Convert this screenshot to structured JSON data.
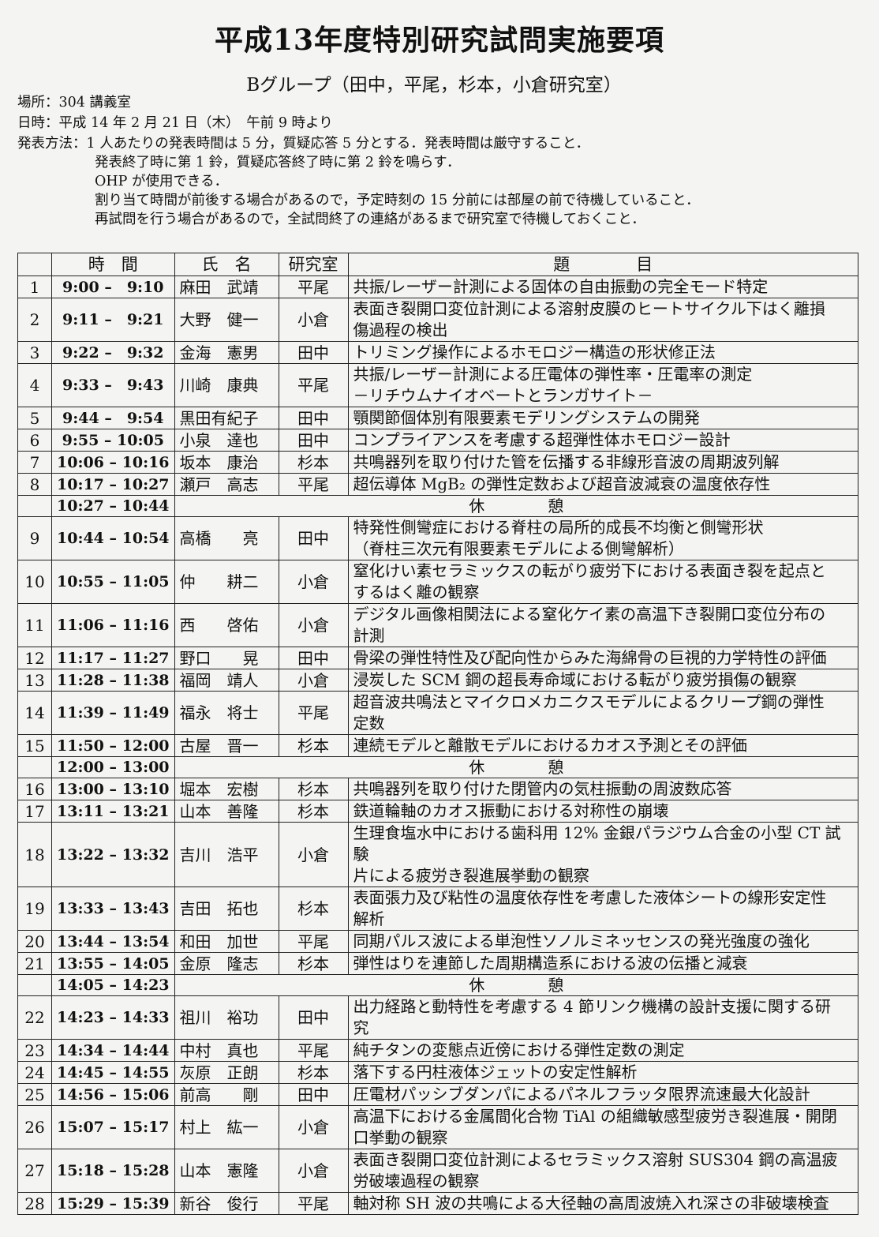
{
  "title": "平成13年度特別研究試問実施要項",
  "subtitle": "Bグループ（田中，平尾，杉本，小倉研究室）",
  "info": {
    "place": "場所：304 講義室",
    "datetime": "日時：平成 14 年 2 月 21 日（木）　午前 9 時より",
    "method_label": "発表方法：",
    "method_lines": [
      "1 人あたりの発表時間は 5 分，質疑応答 5 分とする．発表時間は厳守すること．",
      "発表終了時に第 1 鈴，質疑応答終了時に第 2 鈴を鳴らす．",
      "OHP が使用できる．",
      "割り当て時間が前後する場合があるので，予定時刻の 15 分前には部屋の前で待機していること．",
      "再試問を行う場合があるので，全試問終了の連絡があるまで研究室で待機しておくこと．"
    ]
  },
  "table": {
    "headers": [
      "",
      "時　間",
      "氏　名",
      "研究室",
      "題　　　　目"
    ],
    "break_label": "休　　　　憩",
    "rows": [
      {
        "no": "1",
        "time": "9:00 –　9:10",
        "name": "麻田　武靖",
        "lab": "平尾",
        "title": "共振/レーザー計測による固体の自由振動の完全モード特定"
      },
      {
        "no": "2",
        "time": "9:11 –　9:21",
        "name": "大野　健一",
        "lab": "小倉",
        "title": "表面き裂開口変位計測による溶射皮膜のヒートサイクル下はく離損\n傷過程の検出"
      },
      {
        "no": "3",
        "time": "9:22 –　9:32",
        "name": "金海　憲男",
        "lab": "田中",
        "title": "トリミング操作によるホモロジー構造の形状修正法"
      },
      {
        "no": "4",
        "time": "9:33 –　9:43",
        "name": "川崎　康典",
        "lab": "平尾",
        "title": "共振/レーザー計測による圧電体の弾性率・圧電率の測定\n－リチウムナイオベートとランガサイト－"
      },
      {
        "no": "5",
        "time": "9:44 –　9:54",
        "name": "黒田有紀子",
        "lab": "田中",
        "title": "顎関節個体別有限要素モデリングシステムの開発"
      },
      {
        "no": "6",
        "time": "9:55 – 10:05",
        "name": "小泉　達也",
        "lab": "田中",
        "title": "コンプライアンスを考慮する超弾性体ホモロジー設計"
      },
      {
        "no": "7",
        "time": "10:06 – 10:16",
        "name": "坂本　康治",
        "lab": "杉本",
        "title": "共鳴器列を取り付けた管を伝播する非線形音波の周期波列解"
      },
      {
        "no": "8",
        "time": "10:17 – 10:27",
        "name": "瀬戸　高志",
        "lab": "平尾",
        "title": "超伝導体 MgB₂ の弾性定数および超音波減衰の温度依存性"
      },
      {
        "break": true,
        "time": "10:27 – 10:44"
      },
      {
        "no": "9",
        "time": "10:44 – 10:54",
        "name": "高橋　　亮",
        "lab": "田中",
        "title": "特発性側彎症における脊柱の局所的成長不均衡と側彎形状\n（脊柱三次元有限要素モデルによる側彎解析）"
      },
      {
        "no": "10",
        "time": "10:55 – 11:05",
        "name": "仲　　耕二",
        "lab": "小倉",
        "title": "窒化けい素セラミックスの転がり疲労下における表面き裂を起点と\nするはく離の観察"
      },
      {
        "no": "11",
        "time": "11:06 – 11:16",
        "name": "西　　啓佑",
        "lab": "小倉",
        "title": "デジタル画像相関法による窒化ケイ素の高温下き裂開口変位分布の\n計測"
      },
      {
        "no": "12",
        "time": "11:17 – 11:27",
        "name": "野口　　晃",
        "lab": "田中",
        "title": "骨梁の弾性特性及び配向性からみた海綿骨の巨視的力学特性の評価"
      },
      {
        "no": "13",
        "time": "11:28 – 11:38",
        "name": "福岡　靖人",
        "lab": "小倉",
        "title": "浸炭した SCM 鋼の超長寿命域における転がり疲労損傷の観察"
      },
      {
        "no": "14",
        "time": "11:39 – 11:49",
        "name": "福永　将士",
        "lab": "平尾",
        "title": "超音波共鳴法とマイクロメカニクスモデルによるクリープ鋼の弾性\n定数"
      },
      {
        "no": "15",
        "time": "11:50 – 12:00",
        "name": "古屋　晋一",
        "lab": "杉本",
        "title": "連続モデルと離散モデルにおけるカオス予測とその評価"
      },
      {
        "break": true,
        "time": "12:00 – 13:00"
      },
      {
        "no": "16",
        "time": "13:00 – 13:10",
        "name": "堀本　宏樹",
        "lab": "杉本",
        "title": "共鳴器列を取り付けた閉管内の気柱振動の周波数応答"
      },
      {
        "no": "17",
        "time": "13:11 – 13:21",
        "name": "山本　善隆",
        "lab": "杉本",
        "title": "鉄道輪軸のカオス振動における対称性の崩壊"
      },
      {
        "no": "18",
        "time": "13:22 – 13:32",
        "name": "吉川　浩平",
        "lab": "小倉",
        "title": "生理食塩水中における歯科用 12% 金銀パラジウム合金の小型 CT 試験\n片による疲労き裂進展挙動の観察"
      },
      {
        "no": "19",
        "time": "13:33 – 13:43",
        "name": "吉田　拓也",
        "lab": "杉本",
        "title": "表面張力及び粘性の温度依存性を考慮した液体シートの線形安定性\n解析"
      },
      {
        "no": "20",
        "time": "13:44 – 13:54",
        "name": "和田　加世",
        "lab": "平尾",
        "title": "同期パルス波による単泡性ソノルミネッセンスの発光強度の強化"
      },
      {
        "no": "21",
        "time": "13:55 – 14:05",
        "name": "金原　隆志",
        "lab": "杉本",
        "title": "弾性はりを連節した周期構造系における波の伝播と減衰"
      },
      {
        "break": true,
        "time": "14:05 – 14:23"
      },
      {
        "no": "22",
        "time": "14:23 – 14:33",
        "name": "祖川　裕功",
        "lab": "田中",
        "title": "出力経路と動特性を考慮する 4 節リンク機構の設計支援に関する研\n究"
      },
      {
        "no": "23",
        "time": "14:34 – 14:44",
        "name": "中村　真也",
        "lab": "平尾",
        "title": "純チタンの変態点近傍における弾性定数の測定"
      },
      {
        "no": "24",
        "time": "14:45 – 14:55",
        "name": "灰原　正朗",
        "lab": "杉本",
        "title": "落下する円柱液体ジェットの安定性解析"
      },
      {
        "no": "25",
        "time": "14:56 – 15:06",
        "name": "前高　　剛",
        "lab": "田中",
        "title": "圧電材パッシブダンパによるパネルフラッタ限界流速最大化設計"
      },
      {
        "no": "26",
        "time": "15:07 – 15:17",
        "name": "村上　紘一",
        "lab": "小倉",
        "title": "高温下における金属間化合物 TiAl の組織敏感型疲労き裂進展・開閉\n口挙動の観察"
      },
      {
        "no": "27",
        "time": "15:18 – 15:28",
        "name": "山本　憲隆",
        "lab": "小倉",
        "title": "表面き裂開口変位計測によるセラミックス溶射 SUS304 鋼の高温疲\n労破壊過程の観察"
      },
      {
        "no": "28",
        "time": "15:29 – 15:39",
        "name": "新谷　俊行",
        "lab": "平尾",
        "title": "軸対称 SH 波の共鳴による大径軸の高周波焼入れ深さの非破壊検査"
      }
    ]
  }
}
